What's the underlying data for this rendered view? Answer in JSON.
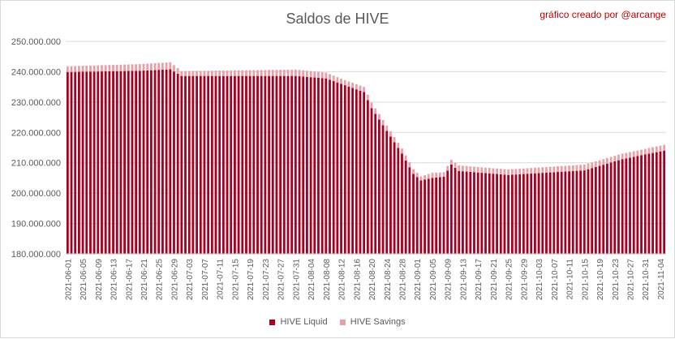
{
  "credit": "gráfico creado por @arcange",
  "chart_data": {
    "type": "bar",
    "stacked": true,
    "title": "Saldos de HIVE",
    "xlabel": "",
    "ylabel": "",
    "ylim": [
      180000000,
      250000000
    ],
    "yticks": [
      "180.000.000",
      "190.000.000",
      "200.000.000",
      "210.000.000",
      "220.000.000",
      "230.000.000",
      "240.000.000",
      "250.000.000"
    ],
    "grid": true,
    "legend_position": "bottom",
    "x_tick_labels": [
      "2021-06-01",
      "2021-06-05",
      "2021-06-09",
      "2021-06-13",
      "2021-06-17",
      "2021-06-21",
      "2021-06-25",
      "2021-06-29",
      "2021-07-03",
      "2021-07-07",
      "2021-07-11",
      "2021-07-15",
      "2021-07-19",
      "2021-07-23",
      "2021-07-27",
      "2021-07-31",
      "2021-08-04",
      "2021-08-08",
      "2021-08-12",
      "2021-08-16",
      "2021-08-20",
      "2021-08-24",
      "2021-08-28",
      "2021-09-01",
      "2021-09-05",
      "2021-09-09",
      "2021-09-13",
      "2021-09-17",
      "2021-09-21",
      "2021-09-25",
      "2021-09-29",
      "2021-10-03",
      "2021-10-07",
      "2021-10-11",
      "2021-10-15",
      "2021-10-19",
      "2021-10-23",
      "2021-10-27",
      "2021-10-31",
      "2021-11-04"
    ],
    "first_date": "2021-06-01",
    "day_count": 158,
    "key_dates": [
      "2021-06-01",
      "2021-06-20",
      "2021-06-28",
      "2021-07-01",
      "2021-07-31",
      "2021-08-08",
      "2021-08-12",
      "2021-08-18",
      "2021-08-20",
      "2021-08-28",
      "2021-08-31",
      "2021-09-02",
      "2021-09-05",
      "2021-09-08",
      "2021-09-10",
      "2021-09-12",
      "2021-09-25",
      "2021-10-15",
      "2021-10-25",
      "2021-11-05"
    ],
    "key_liquid": [
      239900000,
      240300000,
      240800000,
      238600000,
      238600000,
      237800000,
      236000000,
      233300000,
      228000000,
      213000000,
      206300000,
      204200000,
      205000000,
      205400000,
      209400000,
      207300000,
      206000000,
      207500000,
      211200000,
      214000000
    ],
    "key_savings": [
      1900000,
      2200000,
      2300000,
      1600000,
      2100000,
      1900000,
      1700000,
      1700000,
      1800000,
      1700000,
      1600000,
      1300000,
      1700000,
      1500000,
      1600000,
      1800000,
      1800000,
      1900000,
      1800000,
      1900000
    ],
    "series": [
      {
        "name": "HIVE Liquid",
        "color": "#a50021"
      },
      {
        "name": "HIVE Savings",
        "color": "#e6a0a8"
      }
    ]
  }
}
